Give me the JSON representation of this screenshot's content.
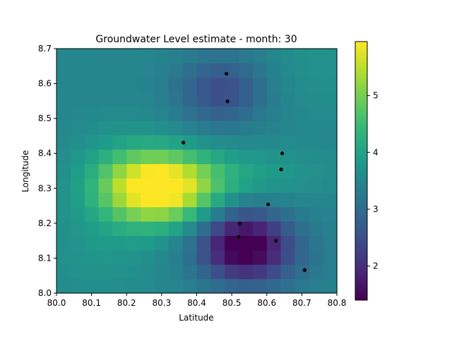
{
  "chart_data": {
    "type": "heatmap",
    "title": "Groundwater Level estimate - month: 30",
    "xlabel": "Latitude",
    "ylabel": "Longitude",
    "xlim": [
      80.0,
      80.8
    ],
    "ylim": [
      8.0,
      8.7
    ],
    "x_ticks": [
      "80.0",
      "80.1",
      "80.2",
      "80.3",
      "80.4",
      "80.5",
      "80.6",
      "80.7",
      "80.8"
    ],
    "y_ticks": [
      "8.0",
      "8.1",
      "8.2",
      "8.3",
      "8.4",
      "8.5",
      "8.6",
      "8.7"
    ],
    "colormap": "viridis",
    "colorbar": {
      "min": 1.4,
      "max": 5.95,
      "ticks": [
        "2",
        "3",
        "4",
        "5"
      ]
    },
    "grid": false,
    "field_model": {
      "base": 3.5,
      "components": [
        {
          "x": 80.3,
          "y": 8.3,
          "amp": 2.55,
          "sx": 0.11,
          "sy": 0.07
        },
        {
          "x": 80.2,
          "y": 8.33,
          "amp": 0.55,
          "sx": 0.1,
          "sy": 0.09
        },
        {
          "x": 80.52,
          "y": 8.34,
          "amp": 0.45,
          "sx": 0.16,
          "sy": 0.05
        },
        {
          "x": 80.53,
          "y": 8.14,
          "amp": -2.05,
          "sx": 0.09,
          "sy": 0.07
        },
        {
          "x": 80.6,
          "y": 8.1,
          "amp": -0.45,
          "sx": 0.12,
          "sy": 0.08
        },
        {
          "x": 80.47,
          "y": 8.58,
          "amp": -1.05,
          "sx": 0.09,
          "sy": 0.07
        },
        {
          "x": 80.12,
          "y": 8.12,
          "amp": 0.25,
          "sx": 0.12,
          "sy": 0.1
        },
        {
          "x": 80.75,
          "y": 8.65,
          "amp": 0.2,
          "sx": 0.1,
          "sy": 0.1
        }
      ]
    },
    "points": [
      {
        "x": 80.485,
        "y": 8.628
      },
      {
        "x": 80.488,
        "y": 8.549
      },
      {
        "x": 80.362,
        "y": 8.431
      },
      {
        "x": 80.644,
        "y": 8.4
      },
      {
        "x": 80.641,
        "y": 8.354
      },
      {
        "x": 80.604,
        "y": 8.254
      },
      {
        "x": 80.523,
        "y": 8.199
      },
      {
        "x": 80.52,
        "y": 8.161
      },
      {
        "x": 80.626,
        "y": 8.15
      },
      {
        "x": 80.708,
        "y": 8.066
      }
    ]
  }
}
